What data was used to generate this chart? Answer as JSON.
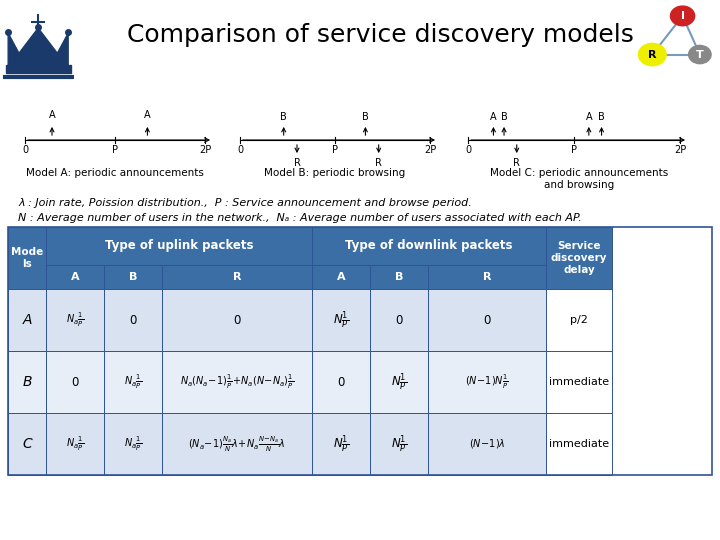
{
  "title": "Comparison of service discovery models",
  "title_fontsize": 18,
  "bg_color": "#ffffff",
  "header_color": "#3a6ea5",
  "header_text_color": "#ffffff",
  "row_color_a": "#d9e2f0",
  "row_color_b": "#e8eef7",
  "border_color": "#2f5496",
  "label_a": "Model A: periodic announcements",
  "label_b": "Model B: periodic browsing",
  "label_c": "Model C: periodic announcements\nand browsing",
  "note1": "λ : Join rate, Poission distribution.,  P : Service announcement and browse period.",
  "note2": "N : Average number of users in the network.,  Nₐ : Average number of users associated with each AP."
}
